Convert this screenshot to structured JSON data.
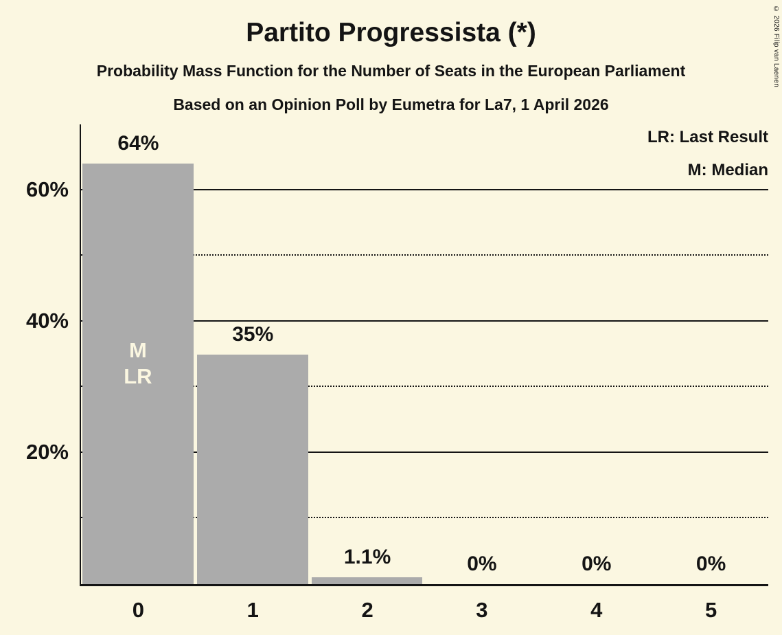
{
  "title": "Partito Progressista (*)",
  "subtitle1": "Probability Mass Function for the Number of Seats in the European Parliament",
  "subtitle2": "Based on an Opinion Poll by Eumetra for La7, 1 April 2026",
  "legend": {
    "lr": "LR: Last Result",
    "m": "M: Median"
  },
  "copyright": "© 2026 Filip van Laenen",
  "colors": {
    "background": "#FBF7E1",
    "bar": "#ABABAB",
    "text": "#141414",
    "bar_annotation_text": "#FBF7E1"
  },
  "chart_data": {
    "type": "bar",
    "title": "Partito Progressista (*)",
    "xlabel": "",
    "ylabel": "",
    "categories": [
      "0",
      "1",
      "2",
      "3",
      "4",
      "5"
    ],
    "values": [
      64,
      35,
      1.1,
      0,
      0,
      0
    ],
    "value_labels": [
      "64%",
      "35%",
      "1.1%",
      "0%",
      "0%",
      "0%"
    ],
    "bar_annotations": [
      {
        "index": 0,
        "lines": [
          "M",
          "LR"
        ]
      }
    ],
    "ylim": [
      0,
      70
    ],
    "yticks": [
      {
        "value": 20,
        "label": "20%"
      },
      {
        "value": 40,
        "label": "40%"
      },
      {
        "value": 60,
        "label": "60%"
      }
    ],
    "solid_gridlines": [
      20,
      40,
      60
    ],
    "dotted_gridlines": [
      10,
      30,
      50
    ],
    "grid": true,
    "legend_position": "top-right"
  }
}
